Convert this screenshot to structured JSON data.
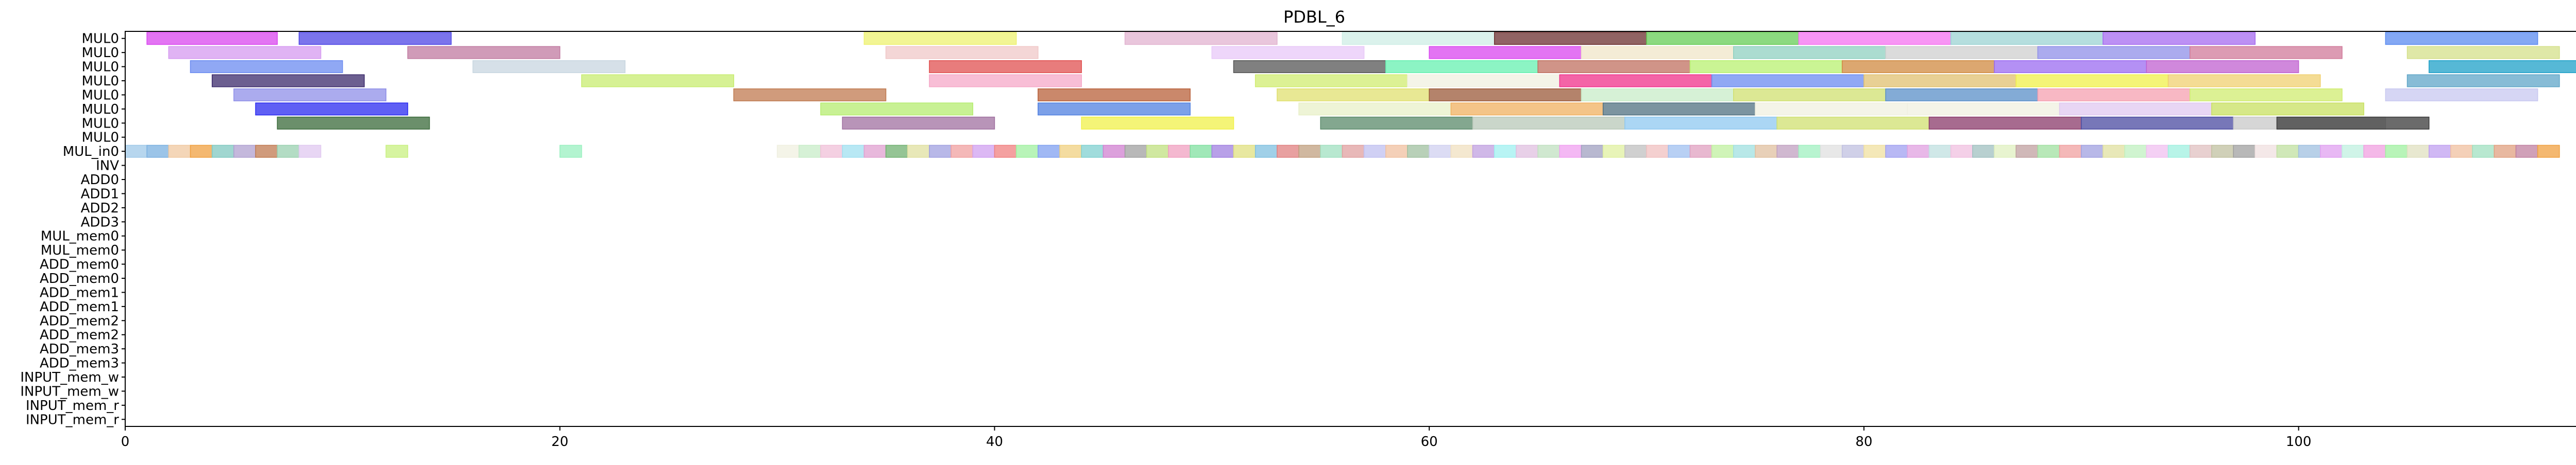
{
  "chart_data": {
    "type": "gantt",
    "title": "PDBL_6",
    "xlabel": "",
    "ylabel": "",
    "xlim": [
      0,
      113
    ],
    "x_ticks": [
      0,
      20,
      40,
      60,
      80,
      100
    ],
    "x_tick_labels": [
      "0",
      "20",
      "40",
      "60",
      "80",
      "100"
    ],
    "grid": false,
    "row_labels": [
      "MUL0",
      "MUL0",
      "MUL0",
      "MUL0",
      "MUL0",
      "MUL0",
      "MUL0",
      "MUL0",
      "MUL_in0",
      "INV",
      "ADD0",
      "ADD1",
      "ADD2",
      "ADD3",
      "MUL_mem0",
      "MUL_mem0",
      "ADD_mem0",
      "ADD_mem0",
      "ADD_mem1",
      "ADD_mem1",
      "ADD_mem2",
      "ADD_mem2",
      "ADD_mem3",
      "ADD_mem3",
      "INPUT_mem_w",
      "INPUT_mem_w",
      "INPUT_mem_r",
      "INPUT_mem_r"
    ],
    "series": [
      {
        "row": 0,
        "tasks": [
          [
            1,
            7,
            "#d946ef"
          ],
          [
            8,
            15,
            "#4f46e5"
          ],
          [
            34,
            41,
            "#eef270"
          ],
          [
            46,
            53,
            "#e2b3d0"
          ],
          [
            56,
            63,
            "#cfeee6"
          ],
          [
            63,
            70,
            "#6b2f2f"
          ],
          [
            70,
            77,
            "#66cc55"
          ],
          [
            77,
            84,
            "#f472f0"
          ],
          [
            84,
            91,
            "#9cd3d3"
          ],
          [
            91,
            98,
            "#a66bf0"
          ],
          [
            104,
            111,
            "#5b8bf0"
          ]
        ]
      },
      {
        "row": 1,
        "tasks": [
          [
            2,
            9,
            "#d69af0"
          ],
          [
            13,
            20,
            "#c07aa0"
          ],
          [
            35,
            42,
            "#f0c8c8"
          ],
          [
            50,
            57,
            "#e8c8f8"
          ],
          [
            60,
            67,
            "#d946ef"
          ],
          [
            67,
            74,
            "#f0e6c8"
          ],
          [
            74,
            81,
            "#8fd0c0"
          ],
          [
            81,
            88,
            "#cfcfcf"
          ],
          [
            88,
            95,
            "#8f8fe8"
          ],
          [
            95,
            102,
            "#d07a9a"
          ],
          [
            105,
            112,
            "#d4e08a"
          ]
        ]
      },
      {
        "row": 2,
        "tasks": [
          [
            3,
            10,
            "#6b8bf0"
          ],
          [
            16,
            23,
            "#c8d6e0"
          ],
          [
            37,
            44,
            "#e05050"
          ],
          [
            51,
            58,
            "#555555"
          ],
          [
            58,
            65,
            "#66f0b0"
          ],
          [
            65,
            72,
            "#c07060"
          ],
          [
            72,
            79,
            "#b8f070"
          ],
          [
            79,
            86,
            "#d08a40"
          ],
          [
            86,
            93,
            "#9b6bf0"
          ],
          [
            93,
            100,
            "#c060d0"
          ],
          [
            106,
            113,
            "#1ea0c8"
          ]
        ]
      },
      {
        "row": 3,
        "tasks": [
          [
            4,
            11,
            "#3b2a6b"
          ],
          [
            21,
            28,
            "#c8ec70"
          ],
          [
            37,
            44,
            "#f5a8c8"
          ],
          [
            52,
            59,
            "#d0ec70"
          ],
          [
            59,
            66,
            "#f0f0e0"
          ],
          [
            66,
            73,
            "#f0308a"
          ],
          [
            73,
            80,
            "#6b8bf0"
          ],
          [
            80,
            87,
            "#e0c070"
          ],
          [
            87,
            94,
            "#f0f04a"
          ],
          [
            94,
            101,
            "#f0d070"
          ],
          [
            105,
            112,
            "#5fa6c8"
          ]
        ]
      },
      {
        "row": 4,
        "tasks": [
          [
            5,
            12,
            "#8f8fe8"
          ],
          [
            28,
            35,
            "#c07a50"
          ],
          [
            42,
            49,
            "#b8603a"
          ],
          [
            53,
            60,
            "#e0e070"
          ],
          [
            60,
            67,
            "#9b5a3a"
          ],
          [
            67,
            74,
            "#c8ecc8"
          ],
          [
            74,
            81,
            "#d0e070"
          ],
          [
            81,
            88,
            "#5a8fc8"
          ],
          [
            88,
            95,
            "#f5a0b0"
          ],
          [
            95,
            102,
            "#d0ec70"
          ],
          [
            104,
            111,
            "#c8c8f0"
          ]
        ]
      },
      {
        "row": 5,
        "tasks": [
          [
            6,
            13,
            "#2a2af0"
          ],
          [
            32,
            39,
            "#b6ec70"
          ],
          [
            42,
            49,
            "#5080e0"
          ],
          [
            54,
            61,
            "#e8f0c8"
          ],
          [
            61,
            68,
            "#f0b060"
          ],
          [
            68,
            75,
            "#507080"
          ],
          [
            75,
            82,
            "#f0f0e0"
          ],
          [
            82,
            89,
            "#f0f0e0"
          ],
          [
            89,
            96,
            "#e0c8f0"
          ],
          [
            96,
            103,
            "#c8e060"
          ]
        ]
      },
      {
        "row": 6,
        "tasks": [
          [
            7,
            14,
            "#3a6a3a"
          ],
          [
            33,
            40,
            "#a070a0"
          ],
          [
            44,
            51,
            "#f0f04a"
          ],
          [
            55,
            62,
            "#5a8a6a"
          ],
          [
            62,
            69,
            "#b8c8b8"
          ],
          [
            69,
            76,
            "#8fc8f0"
          ],
          [
            76,
            83,
            "#d0e070"
          ],
          [
            83,
            90,
            "#8a3a6a"
          ],
          [
            90,
            97,
            "#4a4aa0"
          ],
          [
            97,
            104,
            "#c8c8c8"
          ],
          [
            99,
            106,
            "#3a3a3a"
          ]
        ]
      }
    ],
    "cell_rows": {
      "MUL_in0": {
        "row": 8,
        "cells": [
          [
            0,
            "#9fc8e8"
          ],
          [
            1,
            "#7ab0e0"
          ],
          [
            2,
            "#f0c8a0"
          ],
          [
            3,
            "#f0a040"
          ],
          [
            4,
            "#80c8c0"
          ],
          [
            5,
            "#b0a0d0"
          ],
          [
            6,
            "#c07a50"
          ],
          [
            7,
            "#9ad0b0"
          ],
          [
            8,
            "#e0c8f0"
          ],
          [
            12,
            "#c8f080"
          ],
          [
            20,
            "#9af0c0"
          ],
          [
            30,
            "#f0f0e0"
          ],
          [
            31,
            "#c8ecc8"
          ],
          [
            32,
            "#f0c0d8"
          ],
          [
            33,
            "#a0e0f0"
          ],
          [
            34,
            "#e0a0d0"
          ],
          [
            35,
            "#70b070"
          ],
          [
            36,
            "#e0e0a0"
          ],
          [
            37,
            "#a0a0e0"
          ],
          [
            38,
            "#f0a0a0"
          ],
          [
            39,
            "#d0a0f0"
          ],
          [
            40,
            "#f08080"
          ],
          [
            41,
            "#a0f0a0"
          ],
          [
            42,
            "#80a0f0"
          ],
          [
            43,
            "#f0d080"
          ],
          [
            44,
            "#80d0d0"
          ],
          [
            45,
            "#d080d0"
          ],
          [
            46,
            "#a0a0a0"
          ],
          [
            47,
            "#c0e080"
          ],
          [
            48,
            "#f0a0c0"
          ],
          [
            49,
            "#80e0a0"
          ],
          [
            50,
            "#a080e0"
          ],
          [
            51,
            "#e0e080"
          ],
          [
            52,
            "#80c0e0"
          ],
          [
            53,
            "#e08080"
          ],
          [
            54,
            "#c0a080"
          ],
          [
            55,
            "#a0e0c0"
          ],
          [
            56,
            "#e0a0a0"
          ],
          [
            57,
            "#c0c0f0"
          ],
          [
            58,
            "#f0c0a0"
          ],
          [
            59,
            "#a0c0a0"
          ],
          [
            60,
            "#d0d0f0"
          ],
          [
            61,
            "#f0e0c0"
          ],
          [
            62,
            "#c0a0e0"
          ],
          [
            63,
            "#a0f0f0"
          ],
          [
            64,
            "#e0c0e0"
          ],
          [
            65,
            "#c0e0c0"
          ],
          [
            66,
            "#f0a0f0"
          ],
          [
            67,
            "#a0a0c0"
          ],
          [
            68,
            "#e0f0a0"
          ],
          [
            69,
            "#c0c0c0"
          ],
          [
            70,
            "#f0c0c0"
          ],
          [
            71,
            "#a0c0f0"
          ],
          [
            72,
            "#e0a0c0"
          ],
          [
            73,
            "#c0f0a0"
          ],
          [
            74,
            "#a0e0e0"
          ],
          [
            75,
            "#e0c0a0"
          ],
          [
            76,
            "#c0a0c0"
          ],
          [
            77,
            "#a0f0c0"
          ],
          [
            78,
            "#e0e0e0"
          ],
          [
            79,
            "#c0c0e0"
          ],
          [
            80,
            "#f0e0a0"
          ],
          [
            81,
            "#a0a0f0"
          ],
          [
            82,
            "#e0a0e0"
          ],
          [
            83,
            "#c0e0e0"
          ],
          [
            84,
            "#f0c0e0"
          ],
          [
            85,
            "#a0c0c0"
          ],
          [
            86,
            "#e0f0c0"
          ],
          [
            87,
            "#c0a0a0"
          ],
          [
            88,
            "#a0e0a0"
          ],
          [
            89,
            "#f0a0a0"
          ],
          [
            90,
            "#a0a0e0"
          ],
          [
            91,
            "#e0e0a0"
          ],
          [
            92,
            "#c0f0c0"
          ],
          [
            93,
            "#f0c0f0"
          ],
          [
            94,
            "#a0f0e0"
          ],
          [
            95,
            "#e0c0c0"
          ],
          [
            96,
            "#c0c0a0"
          ],
          [
            97,
            "#a0a0a0"
          ],
          [
            98,
            "#f0e0e0"
          ],
          [
            99,
            "#c0e0a0"
          ],
          [
            100,
            "#a0c0e0"
          ],
          [
            101,
            "#e0a0f0"
          ],
          [
            102,
            "#c0f0e0"
          ],
          [
            103,
            "#f0a0e0"
          ],
          [
            104,
            "#a0f0a0"
          ],
          [
            105,
            "#e0e0c0"
          ],
          [
            106,
            "#c0a0f0"
          ],
          [
            107,
            "#f0c0a0"
          ],
          [
            108,
            "#a0e0c0"
          ],
          [
            109,
            "#e0a080"
          ],
          [
            110,
            "#c080a0"
          ],
          [
            111,
            "#f0a040"
          ]
        ]
      }
    }
  }
}
